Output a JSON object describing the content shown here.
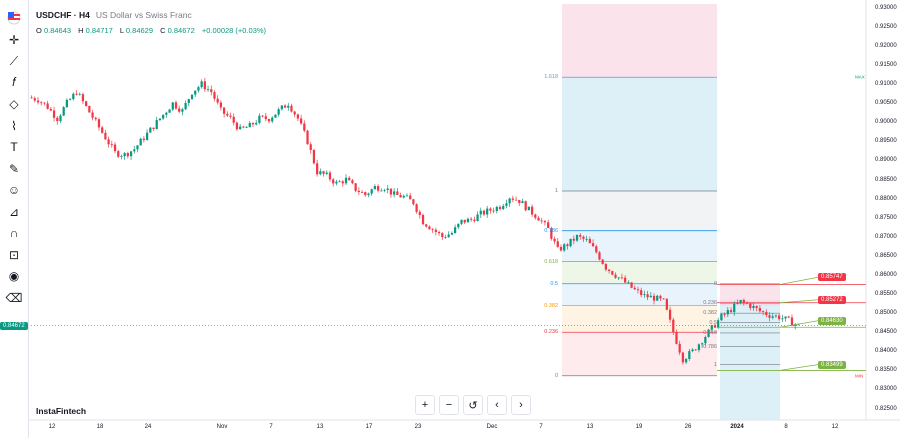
{
  "header": {
    "symbol": "USDCHF · H4",
    "description": "US Dollar vs Swiss Franc"
  },
  "ohlc": {
    "o_label": "O",
    "o": "0.84643",
    "h_label": "H",
    "h": "0.84717",
    "l_label": "L",
    "l": "0.84629",
    "c_label": "C",
    "c": "0.84672",
    "change": "+0.00028 (+0.03%)"
  },
  "brand": "InstaFintech",
  "toolbar": {
    "icons": [
      "flag-icon",
      "crosshair-icon",
      "trend-line-icon",
      "fib-icon",
      "pattern-icon",
      "brush-icon",
      "text-icon",
      "pencil-icon",
      "emoji-icon",
      "ruler-icon",
      "magnet-icon",
      "lock-icon",
      "eye-icon",
      "trash-icon"
    ]
  },
  "controls": {
    "zoom_in": "+",
    "zoom_out": "−",
    "reset": "↺",
    "back": "‹",
    "forward": "›"
  },
  "colors": {
    "up": "#089981",
    "down": "#f23645",
    "accent": "#2962ff"
  },
  "chart_data": {
    "type": "candlestick",
    "symbol": "USDCHF",
    "timeframe": "H4",
    "ylim": [
      0.822,
      0.931
    ],
    "yticks": [
      0.93,
      0.925,
      0.92,
      0.915,
      0.91,
      0.905,
      0.9,
      0.895,
      0.89,
      0.885,
      0.88,
      0.875,
      0.87,
      0.865,
      0.86,
      0.855,
      0.85,
      0.845,
      0.84,
      0.835,
      0.83,
      0.825
    ],
    "xticks": [
      {
        "label": "12",
        "bold": false
      },
      {
        "label": "18",
        "bold": false
      },
      {
        "label": "24",
        "bold": false
      },
      {
        "label": "Nov",
        "bold": false
      },
      {
        "label": "7",
        "bold": false
      },
      {
        "label": "13",
        "bold": false
      },
      {
        "label": "17",
        "bold": false
      },
      {
        "label": "23",
        "bold": false
      },
      {
        "label": "Dec",
        "bold": false
      },
      {
        "label": "7",
        "bold": false
      },
      {
        "label": "13",
        "bold": false
      },
      {
        "label": "19",
        "bold": false
      },
      {
        "label": "26",
        "bold": false
      },
      {
        "label": "2024",
        "bold": true
      },
      {
        "label": "8",
        "bold": false
      },
      {
        "label": "12",
        "bold": false
      }
    ],
    "price_path": [
      0.9065,
      0.906,
      0.904,
      0.901,
      0.905,
      0.908,
      0.904,
      0.9,
      0.896,
      0.892,
      0.8915,
      0.893,
      0.896,
      0.899,
      0.902,
      0.905,
      0.903,
      0.908,
      0.91,
      0.908,
      0.903,
      0.901,
      0.898,
      0.899,
      0.901,
      0.901,
      0.903,
      0.905,
      0.901,
      0.895,
      0.887,
      0.886,
      0.884,
      0.885,
      0.8825,
      0.881,
      0.883,
      0.883,
      0.881,
      0.8805,
      0.879,
      0.874,
      0.872,
      0.87,
      0.871,
      0.874,
      0.8745,
      0.876,
      0.877,
      0.878,
      0.8805,
      0.8795,
      0.877,
      0.875,
      0.872,
      0.8665,
      0.868,
      0.87,
      0.869,
      0.866,
      0.862,
      0.86,
      0.858,
      0.856,
      0.8545,
      0.854,
      0.853,
      0.845,
      0.838,
      0.84,
      0.843,
      0.846,
      0.849,
      0.851,
      0.853,
      0.852,
      0.8505,
      0.8495,
      0.849,
      0.848,
      0.8467
    ],
    "last_price": "0.84672",
    "fibonacci_1": {
      "levels": [
        {
          "ratio": "1.618",
          "price": 0.9118
        },
        {
          "ratio": "1",
          "price": 0.882
        },
        {
          "ratio": "0.786",
          "price": 0.8716
        },
        {
          "ratio": "0.618",
          "price": 0.8635
        },
        {
          "ratio": "0.5",
          "price": 0.8577
        },
        {
          "ratio": "0.382",
          "price": 0.852
        },
        {
          "ratio": "0.236",
          "price": 0.845
        },
        {
          "ratio": "0",
          "price": 0.8336
        }
      ],
      "colors": [
        "#5b9bd5",
        "#787b86",
        "#2196f3",
        "#7cb342",
        "#2196f3",
        "#ff9800",
        "#f23645",
        "#787b86"
      ]
    },
    "fibonacci_2": {
      "levels": [
        {
          "ratio": "0",
          "price": 0.8577
        },
        {
          "ratio": "0.236",
          "price": 0.8526
        },
        {
          "ratio": "0.382",
          "price": 0.85
        },
        {
          "ratio": "0.5",
          "price": 0.8475
        },
        {
          "ratio": "0.618",
          "price": 0.8448
        },
        {
          "ratio": "0.786",
          "price": 0.8412
        },
        {
          "ratio": "1",
          "price": 0.8365
        }
      ]
    },
    "key_levels": [
      {
        "label": "0.85747",
        "price": 0.85747,
        "color": "#f23645"
      },
      {
        "label": "0.85272",
        "price": 0.85272,
        "color": "#f23645"
      },
      {
        "label": "0.84630",
        "price": 0.8463,
        "color": "#7cb342"
      },
      {
        "label": "0.83499",
        "price": 0.83499,
        "color": "#7cb342"
      }
    ],
    "side_markers": [
      {
        "label": "MAX",
        "price": 0.9118,
        "color": "#089981"
      },
      {
        "label": "MIN",
        "price": 0.8336,
        "color": "#f23645"
      }
    ]
  }
}
